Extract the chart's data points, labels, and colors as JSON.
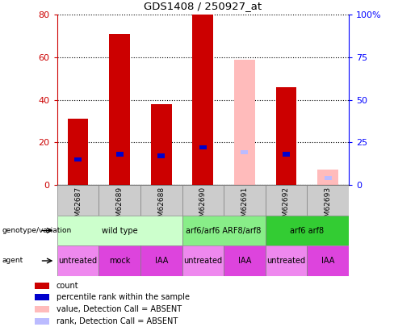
{
  "title": "GDS1408 / 250927_at",
  "samples": [
    "GSM62687",
    "GSM62689",
    "GSM62688",
    "GSM62690",
    "GSM62691",
    "GSM62692",
    "GSM62693"
  ],
  "count_values": [
    31,
    71,
    38,
    80,
    null,
    46,
    null
  ],
  "rank_values": [
    15,
    18,
    17,
    22,
    null,
    18,
    null
  ],
  "absent_value_values": [
    null,
    null,
    null,
    null,
    59,
    null,
    7
  ],
  "absent_rank_values": [
    null,
    null,
    null,
    null,
    19,
    null,
    4
  ],
  "ylim_left": [
    0,
    80
  ],
  "ylim_right": [
    0,
    100
  ],
  "yticks_left": [
    0,
    20,
    40,
    60,
    80
  ],
  "yticks_right": [
    0,
    25,
    50,
    75,
    100
  ],
  "yticklabels_right": [
    "0",
    "25",
    "50",
    "75",
    "100%"
  ],
  "genotype_groups": [
    {
      "label": "wild type",
      "span": [
        0,
        3
      ],
      "color": "#ccffcc"
    },
    {
      "label": "arf6/arf6 ARF8/arf8",
      "span": [
        3,
        5
      ],
      "color": "#88ee88"
    },
    {
      "label": "arf6 arf8",
      "span": [
        5,
        7
      ],
      "color": "#33cc33"
    }
  ],
  "agent_groups": [
    {
      "label": "untreated",
      "span": [
        0,
        1
      ],
      "color": "#ee88ee"
    },
    {
      "label": "mock",
      "span": [
        1,
        2
      ],
      "color": "#dd44dd"
    },
    {
      "label": "IAA",
      "span": [
        2,
        3
      ],
      "color": "#dd44dd"
    },
    {
      "label": "untreated",
      "span": [
        3,
        4
      ],
      "color": "#ee88ee"
    },
    {
      "label": "IAA",
      "span": [
        4,
        5
      ],
      "color": "#dd44dd"
    },
    {
      "label": "untreated",
      "span": [
        5,
        6
      ],
      "color": "#ee88ee"
    },
    {
      "label": "IAA",
      "span": [
        6,
        7
      ],
      "color": "#dd44dd"
    }
  ],
  "bar_width": 0.5,
  "count_color": "#cc0000",
  "rank_color": "#0000cc",
  "absent_value_color": "#ffbbbb",
  "absent_rank_color": "#bbbbff",
  "legend_items": [
    {
      "label": "count",
      "color": "#cc0000"
    },
    {
      "label": "percentile rank within the sample",
      "color": "#0000cc"
    },
    {
      "label": "value, Detection Call = ABSENT",
      "color": "#ffbbbb"
    },
    {
      "label": "rank, Detection Call = ABSENT",
      "color": "#bbbbff"
    }
  ],
  "sample_box_color": "#cccccc",
  "grid_color": "black",
  "grid_linestyle": ":",
  "grid_linewidth": 0.8
}
